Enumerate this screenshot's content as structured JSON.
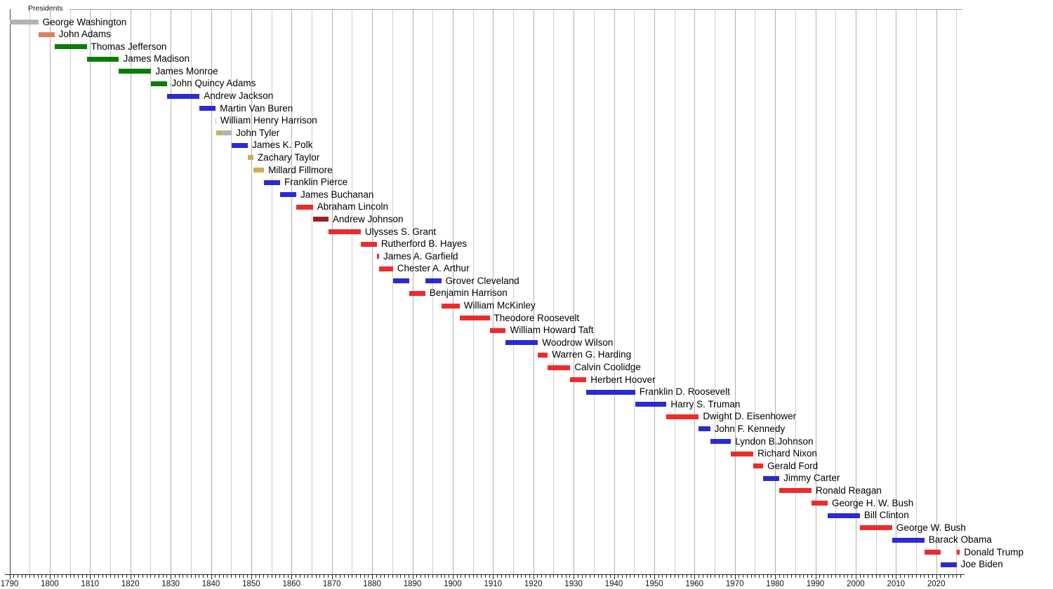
{
  "chart_data": {
    "type": "bar",
    "subtype": "gantt-timeline",
    "title": "Presidents",
    "grid": true,
    "legend": "none",
    "x_axis": {
      "min": 1790,
      "max": 2026.5,
      "gridline_step": 5,
      "minor_tick_step": 1,
      "major_tick_step": 10,
      "major_tick_labels": [
        "1790",
        "1800",
        "1810",
        "1820",
        "1830",
        "1840",
        "1850",
        "1860",
        "1870",
        "1880",
        "1890",
        "1900",
        "1910",
        "1920",
        "1930",
        "1940",
        "1950",
        "1960",
        "1970",
        "1980",
        "1990",
        "2000",
        "2010",
        "2020"
      ]
    },
    "party_colors": {
      "independent": "#b3b3b3",
      "federalist": "#d6825f",
      "democratic-republican": "#087d08",
      "democratic": "#2a2ad5",
      "whig": "#ccaf52",
      "unaffiliated": "#b3b3b3",
      "republican": "#ee2b2b",
      "national-union": "#9b2020"
    },
    "presidents": [
      {
        "name": "George Washington",
        "segments": [
          {
            "start": 1790.0,
            "end": 1797.17,
            "party": "independent"
          }
        ]
      },
      {
        "name": "John Adams",
        "segments": [
          {
            "start": 1797.17,
            "end": 1801.17,
            "party": "federalist"
          }
        ]
      },
      {
        "name": "Thomas Jefferson",
        "segments": [
          {
            "start": 1801.17,
            "end": 1809.17,
            "party": "democratic-republican"
          }
        ]
      },
      {
        "name": "James Madison",
        "segments": [
          {
            "start": 1809.17,
            "end": 1817.17,
            "party": "democratic-republican"
          }
        ]
      },
      {
        "name": "James Monroe",
        "segments": [
          {
            "start": 1817.17,
            "end": 1825.17,
            "party": "democratic-republican"
          }
        ]
      },
      {
        "name": "John Quincy Adams",
        "segments": [
          {
            "start": 1825.17,
            "end": 1829.17,
            "party": "democratic-republican"
          }
        ]
      },
      {
        "name": "Andrew Jackson",
        "segments": [
          {
            "start": 1829.17,
            "end": 1837.17,
            "party": "democratic"
          }
        ]
      },
      {
        "name": "Martin Van Buren",
        "segments": [
          {
            "start": 1837.17,
            "end": 1841.17,
            "party": "democratic"
          }
        ]
      },
      {
        "name": "William Henry Harrison",
        "segments": [
          {
            "start": 1841.17,
            "end": 1841.26,
            "party": "whig"
          }
        ]
      },
      {
        "name": "John Tyler",
        "segments": [
          {
            "start": 1841.26,
            "end": 1842.5,
            "party": "whig"
          },
          {
            "start": 1842.5,
            "end": 1845.17,
            "party": "unaffiliated"
          }
        ]
      },
      {
        "name": "James K. Polk",
        "segments": [
          {
            "start": 1845.17,
            "end": 1849.17,
            "party": "democratic"
          }
        ]
      },
      {
        "name": "Zachary Taylor",
        "segments": [
          {
            "start": 1849.17,
            "end": 1850.53,
            "party": "whig"
          }
        ]
      },
      {
        "name": "Millard Fillmore",
        "segments": [
          {
            "start": 1850.53,
            "end": 1853.17,
            "party": "whig"
          }
        ]
      },
      {
        "name": "Franklin Pierce",
        "segments": [
          {
            "start": 1853.17,
            "end": 1857.17,
            "party": "democratic"
          }
        ]
      },
      {
        "name": "James Buchanan",
        "segments": [
          {
            "start": 1857.17,
            "end": 1861.17,
            "party": "democratic"
          }
        ]
      },
      {
        "name": "Abraham Lincoln",
        "segments": [
          {
            "start": 1861.17,
            "end": 1865.29,
            "party": "republican"
          }
        ]
      },
      {
        "name": "Andrew Johnson",
        "segments": [
          {
            "start": 1865.29,
            "end": 1869.17,
            "party": "national-union"
          }
        ]
      },
      {
        "name": "Ulysses S. Grant",
        "segments": [
          {
            "start": 1869.17,
            "end": 1877.17,
            "party": "republican"
          }
        ]
      },
      {
        "name": "Rutherford B. Hayes",
        "segments": [
          {
            "start": 1877.17,
            "end": 1881.17,
            "party": "republican"
          }
        ]
      },
      {
        "name": "James A. Garfield",
        "segments": [
          {
            "start": 1881.17,
            "end": 1881.72,
            "party": "republican"
          }
        ]
      },
      {
        "name": "Chester A. Arthur",
        "segments": [
          {
            "start": 1881.72,
            "end": 1885.17,
            "party": "republican"
          }
        ]
      },
      {
        "name": "Grover Cleveland",
        "segments": [
          {
            "start": 1885.17,
            "end": 1889.17,
            "party": "democratic"
          },
          {
            "start": 1893.17,
            "end": 1897.17,
            "party": "democratic"
          }
        ]
      },
      {
        "name": "Benjamin Harrison",
        "segments": [
          {
            "start": 1889.17,
            "end": 1893.17,
            "party": "republican"
          }
        ]
      },
      {
        "name": "William McKinley",
        "segments": [
          {
            "start": 1897.17,
            "end": 1901.71,
            "party": "republican"
          }
        ]
      },
      {
        "name": "Theodore Roosevelt",
        "segments": [
          {
            "start": 1901.71,
            "end": 1909.17,
            "party": "republican"
          }
        ]
      },
      {
        "name": "William Howard Taft",
        "segments": [
          {
            "start": 1909.17,
            "end": 1913.17,
            "party": "republican"
          }
        ]
      },
      {
        "name": "Woodrow Wilson",
        "segments": [
          {
            "start": 1913.17,
            "end": 1921.17,
            "party": "democratic"
          }
        ]
      },
      {
        "name": "Warren G. Harding",
        "segments": [
          {
            "start": 1921.17,
            "end": 1923.59,
            "party": "republican"
          }
        ]
      },
      {
        "name": "Calvin Coolidge",
        "segments": [
          {
            "start": 1923.59,
            "end": 1929.17,
            "party": "republican"
          }
        ]
      },
      {
        "name": "Herbert Hoover",
        "segments": [
          {
            "start": 1929.17,
            "end": 1933.17,
            "party": "republican"
          }
        ]
      },
      {
        "name": "Franklin D. Roosevelt",
        "segments": [
          {
            "start": 1933.17,
            "end": 1945.28,
            "party": "democratic"
          }
        ]
      },
      {
        "name": "Harry S. Truman",
        "segments": [
          {
            "start": 1945.28,
            "end": 1953.05,
            "party": "democratic"
          }
        ]
      },
      {
        "name": "Dwight D. Eisenhower",
        "segments": [
          {
            "start": 1953.05,
            "end": 1961.05,
            "party": "republican"
          }
        ]
      },
      {
        "name": "John F. Kennedy",
        "segments": [
          {
            "start": 1961.05,
            "end": 1963.89,
            "party": "democratic"
          }
        ]
      },
      {
        "name": "Lyndon B.Johnson",
        "segments": [
          {
            "start": 1963.89,
            "end": 1969.05,
            "party": "democratic"
          }
        ]
      },
      {
        "name": "Richard Nixon",
        "segments": [
          {
            "start": 1969.05,
            "end": 1974.6,
            "party": "republican"
          }
        ]
      },
      {
        "name": "Gerald Ford",
        "segments": [
          {
            "start": 1974.6,
            "end": 1977.05,
            "party": "republican"
          }
        ]
      },
      {
        "name": "Jimmy Carter",
        "segments": [
          {
            "start": 1977.05,
            "end": 1981.05,
            "party": "democratic"
          }
        ]
      },
      {
        "name": "Ronald Reagan",
        "segments": [
          {
            "start": 1981.05,
            "end": 1989.05,
            "party": "republican"
          }
        ]
      },
      {
        "name": "George H. W. Bush",
        "segments": [
          {
            "start": 1989.05,
            "end": 1993.05,
            "party": "republican"
          }
        ]
      },
      {
        "name": "Bill Clinton",
        "segments": [
          {
            "start": 1993.05,
            "end": 2001.05,
            "party": "democratic"
          }
        ]
      },
      {
        "name": "George W. Bush",
        "segments": [
          {
            "start": 2001.05,
            "end": 2009.05,
            "party": "republican"
          }
        ]
      },
      {
        "name": "Barack Obama",
        "segments": [
          {
            "start": 2009.05,
            "end": 2017.05,
            "party": "democratic"
          }
        ]
      },
      {
        "name": "Donald Trump",
        "segments": [
          {
            "start": 2017.05,
            "end": 2021.05,
            "party": "republican"
          },
          {
            "start": 2025.05,
            "end": 2025.85,
            "party": "republican"
          }
        ]
      },
      {
        "name": "Joe Biden",
        "segments": [
          {
            "start": 2021.05,
            "end": 2025.05,
            "party": "democratic"
          }
        ]
      }
    ]
  }
}
